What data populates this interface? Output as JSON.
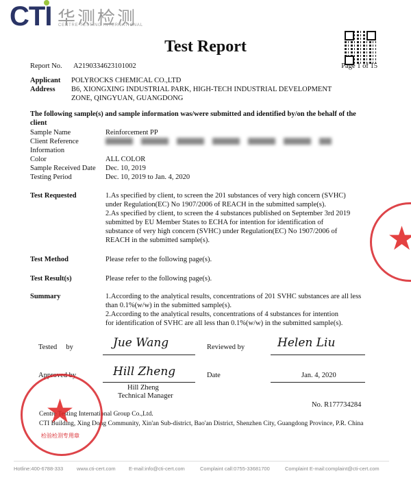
{
  "logo": {
    "brand": "CTI",
    "chinese": "华测检测",
    "english": "CENTRE TESTING INTERNATIONAL"
  },
  "title": "Test Report",
  "report_no_label": "Report No.",
  "report_no": "A2190334623101002",
  "page": "Page 1 of 15",
  "applicant_label": "Applicant",
  "applicant": "POLYROCKS CHEMICAL CO.,LTD",
  "address_label": "Address",
  "address_lines": [
    "B6, XIONGXING INDUSTRIAL PARK, HIGH-TECH INDUSTRIAL DEVELOPMENT",
    "ZONE, QINGYUAN, GUANGDONG"
  ],
  "sample_intro": [
    "The following sample(s) and sample information was/were submitted and identified by/on the behalf of the",
    "client"
  ],
  "sample_info": [
    {
      "label": "Sample Name",
      "value": "Reinforcement PP"
    },
    {
      "label": "Client Reference",
      "value": ""
    },
    {
      "label": "Information",
      "value": ""
    },
    {
      "label": "Color",
      "value": "ALL COLOR"
    },
    {
      "label": "Sample Received Date",
      "value": "Dec. 10, 2019"
    },
    {
      "label": "Testing Period",
      "value": "Dec. 10, 2019 to Jan. 4, 2020"
    }
  ],
  "test_requested_label": "Test Requested",
  "test_requested": [
    "1.As specified by client, to screen the 201 substances of very high concern (SVHC)",
    "under Regulation(EC) No 1907/2006 of REACH in the submitted sample(s).",
    "2.As specified by client, to screen the 4 substances published on September 3rd 2019",
    "submitted by EU Member States to ECHA for intention for identification of",
    "substance of very high concern (SVHC) under Regulation(EC) No 1907/2006 of",
    "REACH in the submitted sample(s)."
  ],
  "test_method_label": "Test Method",
  "test_method": "Please refer to the following page(s).",
  "test_result_label": "Test Result(s)",
  "test_result": "Please refer to the following page(s).",
  "summary_label": "Summary",
  "summary": [
    "1.According to the analytical results, concentrations of 201 SVHC substances are all less",
    "than 0.1%(w/w) in the submitted sample(s).",
    "2.According to the analytical results, concentrations of 4 substances for intention",
    "for identification of SVHC are all less than 0.1%(w/w) in the submitted sample(s)."
  ],
  "tested_by_label": "Tested     by",
  "tested_sig": "Jue Wang",
  "reviewed_by_label": "Reviewed by",
  "reviewed_sig": "Helen Liu",
  "approved_by_label": "Approved by",
  "approved_sig": "Hill Zheng",
  "approver_name": "Hill Zheng",
  "approver_title": "Technical Manager",
  "date_label": "Date",
  "date": "Jan. 4, 2020",
  "serial_no": "No. R177734284",
  "company": "Centre Testing International Group Co.,Ltd.",
  "company_address": "CTI Building, Xing Dong Community, Xin'an Sub-district, Bao'an District, Shenzhen City, Guangdong Province, P.R. China",
  "footer": [
    "Hotline:400-6788-333",
    "www.cti-cert.com",
    "E-mail:info@cti-cert.com",
    "Complaint call:0755-33681700",
    "Complaint E-mail:complaint@cti-cert.com"
  ],
  "stamp_text": "检验检测专用章",
  "colors": {
    "brand": "#2a3466",
    "stamp": "#d8242a"
  }
}
